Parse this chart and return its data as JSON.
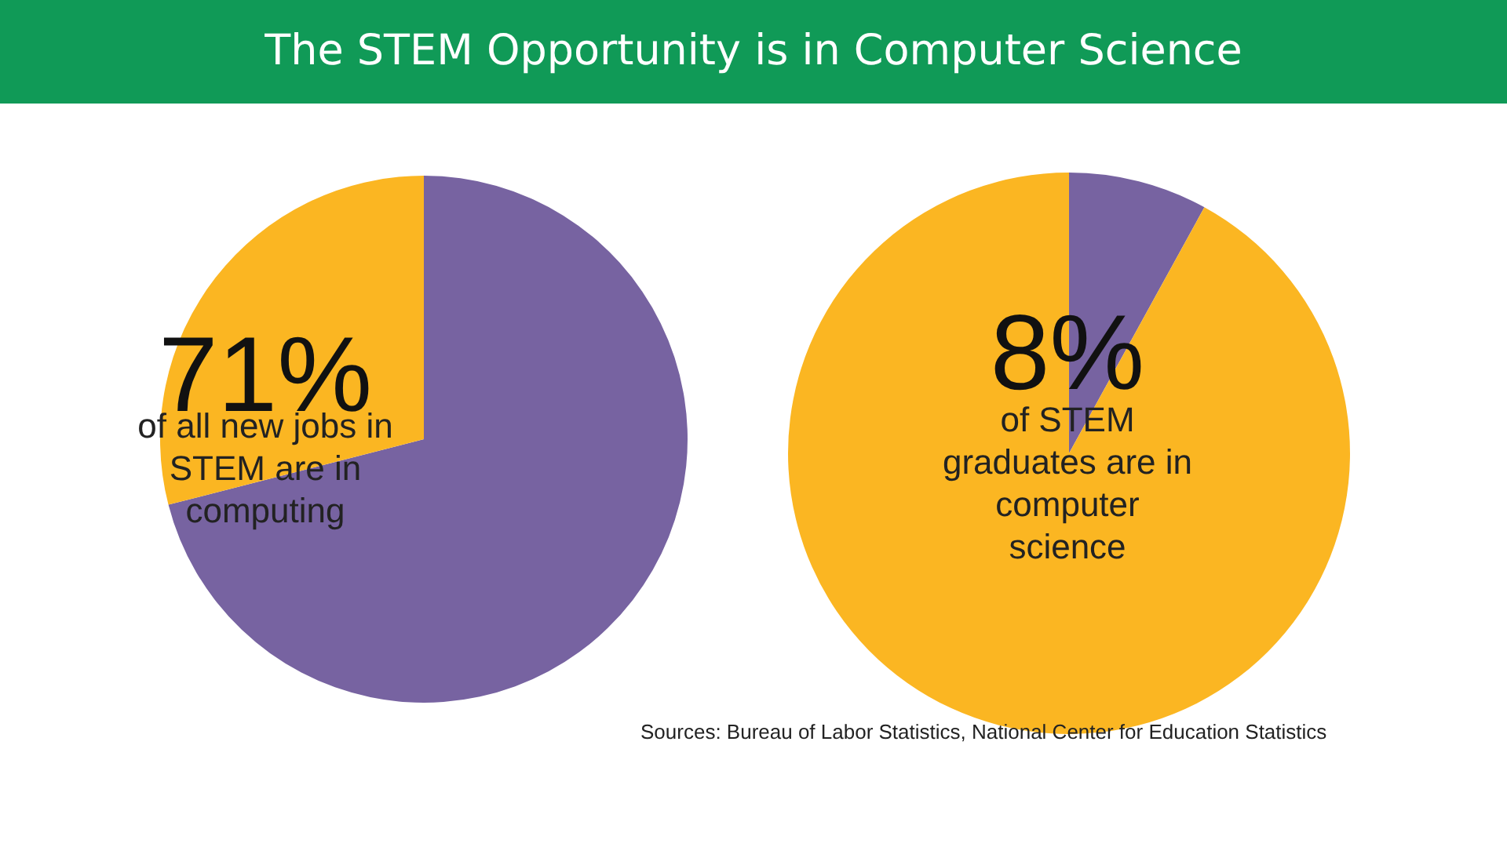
{
  "chart_data": [
    {
      "type": "pie",
      "title": "The STEM Opportunity is in Computer Science",
      "categories": [
        null,
        null
      ],
      "values": [
        71,
        29
      ],
      "colors": [
        "#7763a1",
        "#fbb622"
      ],
      "annotations": [
        "71%",
        "of all new jobs in STEM are in computing"
      ]
    },
    {
      "type": "pie",
      "categories": [
        null,
        null
      ],
      "values": [
        8,
        92
      ],
      "colors": [
        "#7763a1",
        "#fbb622"
      ],
      "annotations": [
        "8%",
        "of STEM graduates are in computer science",
        "Sources: Bureau of Labor Statistics, National Center for Education Statistics"
      ]
    }
  ]
}
